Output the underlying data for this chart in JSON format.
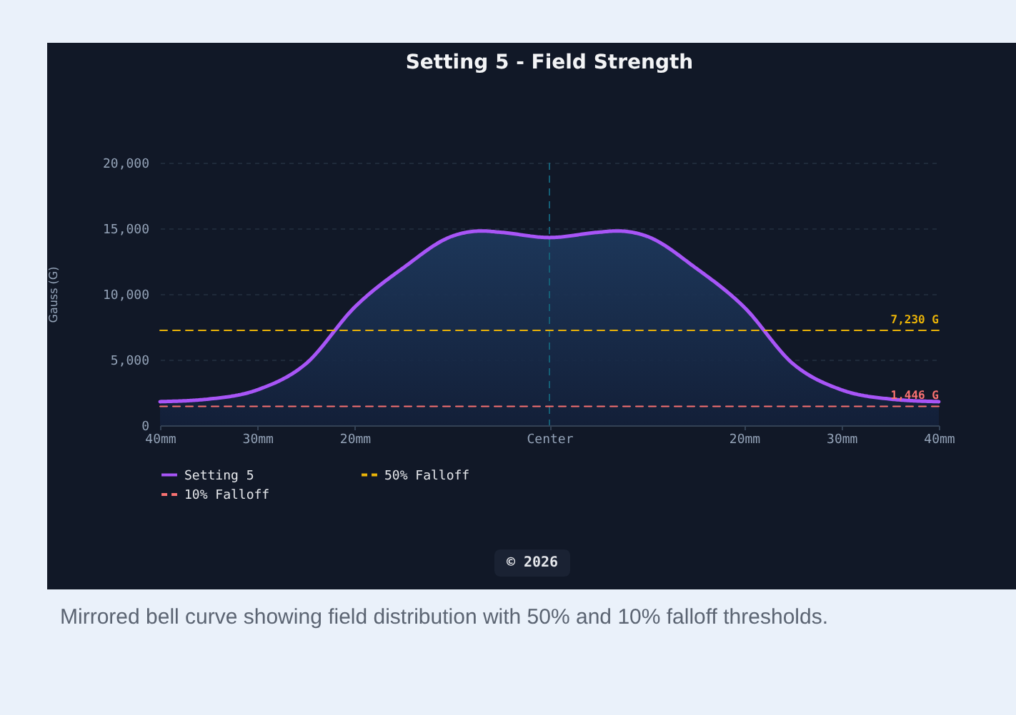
{
  "chart_data": {
    "type": "area",
    "title": "Setting 5 - Field Strength",
    "ylabel": "Gauss (G)",
    "x": [
      -40,
      -35,
      -30,
      -25,
      -20,
      -15,
      -10,
      -7,
      -5,
      0,
      5,
      7,
      10,
      15,
      20,
      25,
      30,
      35,
      40
    ],
    "series": [
      {
        "name": "Setting 5",
        "type": "area",
        "color": "#a855f7",
        "values": [
          1800,
          2000,
          2700,
          4700,
          9000,
          12000,
          14400,
          14800,
          14700,
          14300,
          14700,
          14800,
          14400,
          12000,
          9000,
          4700,
          2700,
          2000,
          1800
        ]
      },
      {
        "name": "50% Falloff",
        "type": "line",
        "color": "#eab308",
        "line_style": "dashed",
        "values": [
          7230,
          7230,
          7230,
          7230,
          7230,
          7230,
          7230,
          7230,
          7230,
          7230,
          7230,
          7230,
          7230,
          7230,
          7230,
          7230,
          7230,
          7230,
          7230
        ]
      },
      {
        "name": "10% Falloff",
        "type": "line",
        "color": "#f87171",
        "line_style": "dashed",
        "values": [
          1446,
          1446,
          1446,
          1446,
          1446,
          1446,
          1446,
          1446,
          1446,
          1446,
          1446,
          1446,
          1446,
          1446,
          1446,
          1446,
          1446,
          1446,
          1446
        ]
      }
    ],
    "xlim": [
      -40,
      40
    ],
    "xticks": [
      {
        "value": -40,
        "label": "40mm"
      },
      {
        "value": -30,
        "label": "30mm"
      },
      {
        "value": -20,
        "label": "20mm"
      },
      {
        "value": 0,
        "label": "Center"
      },
      {
        "value": 20,
        "label": "20mm"
      },
      {
        "value": 30,
        "label": "30mm"
      },
      {
        "value": 40,
        "label": "40mm"
      }
    ],
    "ylim": [
      0,
      20000
    ],
    "yticks": [
      0,
      {
        "value": 5000,
        "label": "5,000"
      },
      {
        "value": 10000,
        "label": "10,000"
      },
      {
        "value": 15000,
        "label": "15,000"
      },
      {
        "value": 20000,
        "label": "20,000"
      }
    ],
    "ref_lines": [
      {
        "axis": "x",
        "value": 0,
        "color": "#155e75",
        "line_style": "dashed"
      }
    ],
    "annotations": [
      {
        "text": "7,230 G",
        "x": 40,
        "y": 7230
      },
      {
        "text": "1,446 G",
        "x": 40,
        "y": 1446
      },
      "© 2026",
      "Mirrored bell curve showing field distribution with 50% and 10% falloff thresholds."
    ],
    "grid": "y",
    "legend": "bottom"
  }
}
